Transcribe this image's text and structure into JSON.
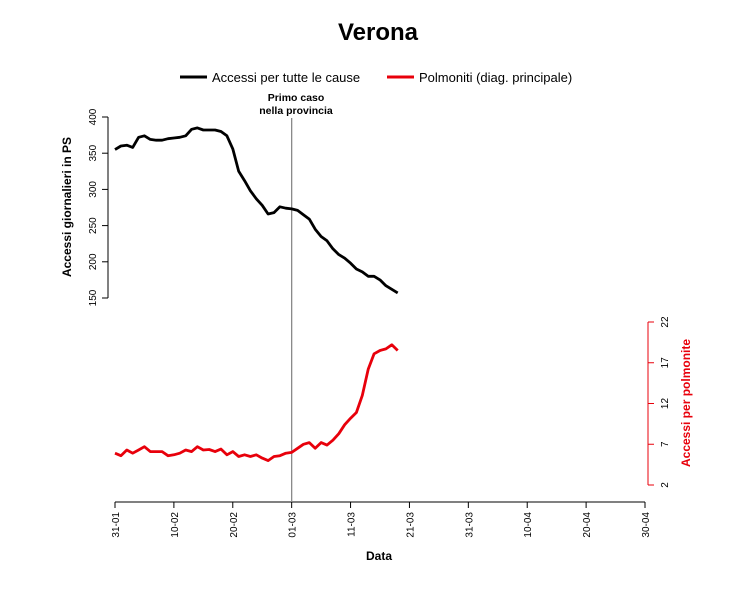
{
  "chart_data": {
    "type": "line",
    "title": "Verona",
    "xlabel": "Data",
    "ylabel_left": "Accessi giornalieri in PS",
    "ylabel_right": "Accessi per polmonite",
    "x_ticks": [
      "31-01",
      "10-02",
      "20-02",
      "01-03",
      "11-03",
      "21-03",
      "31-03",
      "10-04",
      "20-04",
      "30-04"
    ],
    "x_range_days": [
      0,
      90
    ],
    "y_left_ticks": [
      150,
      200,
      250,
      300,
      350,
      400
    ],
    "y_left_range": [
      150,
      400
    ],
    "y_right_ticks": [
      2,
      7,
      12,
      17,
      22
    ],
    "y_right_range": [
      2,
      22
    ],
    "grid": false,
    "legend_position": "top-center",
    "annotation": {
      "day": 30,
      "lines": [
        "Primo caso",
        "nella provincia"
      ]
    },
    "series": [
      {
        "name": "Accessi per tutte le cause",
        "axis": "left",
        "color": "#000000",
        "values": [
          355,
          360,
          361,
          358,
          372,
          374,
          369,
          368,
          368,
          370,
          371,
          372,
          374,
          383,
          385,
          382,
          382,
          382,
          380,
          374,
          356,
          325,
          312,
          298,
          287,
          278,
          266,
          268,
          276,
          274,
          273,
          271,
          265,
          259,
          245,
          235,
          229,
          218,
          210,
          205,
          198,
          190,
          186,
          180,
          180,
          175,
          167,
          162,
          157
        ]
      },
      {
        "name": "Polmoniti (diag. principale)",
        "axis": "right",
        "color": "#e8000b",
        "values": [
          5.9,
          5.6,
          6.3,
          5.9,
          6.3,
          6.7,
          6.1,
          6.1,
          6.1,
          5.6,
          5.7,
          5.9,
          6.3,
          6.1,
          6.7,
          6.3,
          6.35,
          6.1,
          6.4,
          5.7,
          6.1,
          5.5,
          5.7,
          5.5,
          5.7,
          5.3,
          5.0,
          5.5,
          5.6,
          5.9,
          6.0,
          6.5,
          7.0,
          7.2,
          6.5,
          7.2,
          6.9,
          7.5,
          8.3,
          9.4,
          10.2,
          10.9,
          13.0,
          16.2,
          18.1,
          18.5,
          18.7,
          19.2,
          18.5
        ]
      }
    ]
  }
}
